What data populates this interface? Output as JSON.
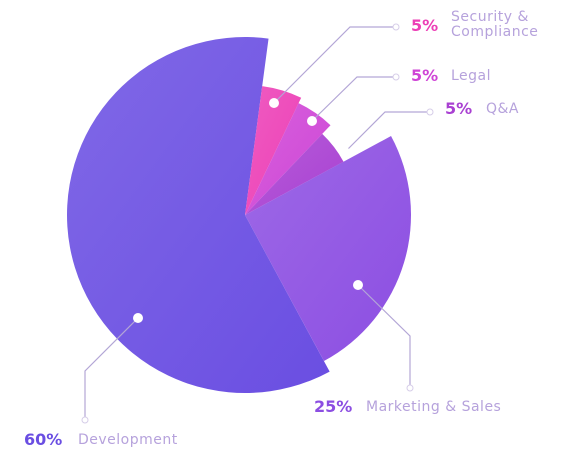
{
  "chart_data": {
    "type": "pie",
    "categories": [
      "Development",
      "Security & Compliance",
      "Legal",
      "Q&A",
      "Marketing & Sales"
    ],
    "values": [
      60,
      5,
      5,
      5,
      25
    ],
    "value_labels": [
      "60%",
      "5%",
      "5%",
      "5%",
      "25%"
    ],
    "colors": [
      "#6a4ee2",
      "#ec3fb6",
      "#cf45d6",
      "#a940d2",
      "#8c4ee2"
    ]
  }
}
